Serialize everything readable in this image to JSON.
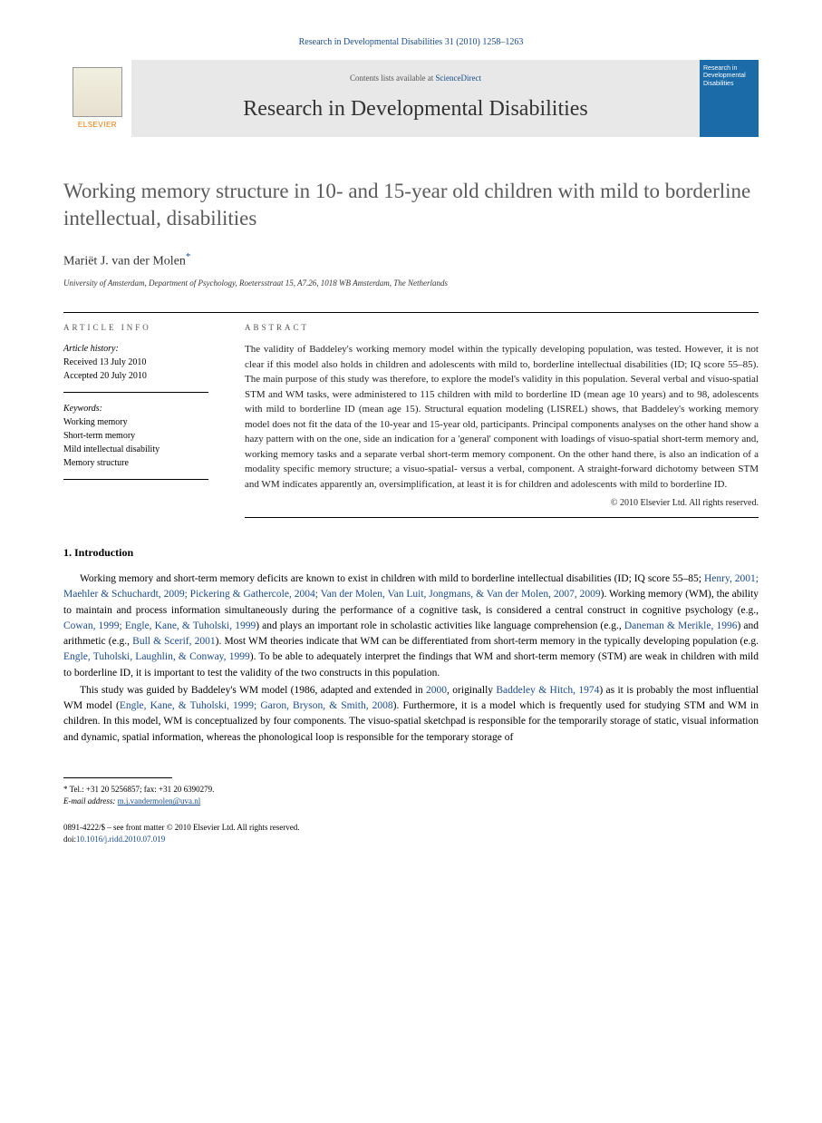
{
  "header": {
    "citation": "Research in Developmental Disabilities 31 (2010) 1258–1263",
    "contents_prefix": "Contents lists available at ",
    "contents_link": "ScienceDirect",
    "journal_title": "Research in Developmental Disabilities",
    "elsevier_label": "ELSEVIER",
    "cover_text": "Research in Developmental Disabilities"
  },
  "article": {
    "title": "Working memory structure in 10- and 15-year old children with mild to borderline intellectual, disabilities",
    "author": "Mariët J. van der Molen",
    "asterisk": "*",
    "affiliation": "University of Amsterdam, Department of Psychology, Roetersstraat 15, A7.26, 1018 WB Amsterdam, The Netherlands"
  },
  "info": {
    "label_info": "ARTICLE INFO",
    "label_abstract": "ABSTRACT",
    "history_label": "Article history:",
    "received": "Received 13 July 2010",
    "accepted": "Accepted 20 July 2010",
    "keywords_label": "Keywords:",
    "keywords": [
      "Working memory",
      "Short-term memory",
      "Mild intellectual disability",
      "Memory structure"
    ]
  },
  "abstract": {
    "text": "The validity of Baddeley's working memory model within the typically developing population, was tested. However, it is not clear if this model also holds in children and adolescents with mild to, borderline intellectual disabilities (ID; IQ score 55–85). The main purpose of this study was therefore, to explore the model's validity in this population. Several verbal and visuo-spatial STM and WM tasks, were administered to 115 children with mild to borderline ID (mean age 10 years) and to 98, adolescents with mild to borderline ID (mean age 15). Structural equation modeling (LISREL) shows, that Baddeley's working memory model does not fit the data of the 10-year and 15-year old, participants. Principal components analyses on the other hand show a hazy pattern with on the one, side an indication for a 'general' component with loadings of visuo-spatial short-term memory and, working memory tasks and a separate verbal short-term memory component. On the other hand there, is also an indication of a modality specific memory structure; a visuo-spatial- versus a verbal, component. A straight-forward dichotomy between STM and WM indicates apparently an, oversimplification, at least it is for children and adolescents with mild to borderline ID.",
    "copyright": "© 2010 Elsevier Ltd. All rights reserved."
  },
  "body": {
    "section1_heading": "1. Introduction",
    "para1_pre": "Working memory and short-term memory deficits are known to exist in children with mild to borderline intellectual disabilities (ID; IQ score 55–85; ",
    "para1_ref1": "Henry, 2001; Maehler & Schuchardt, 2009; Pickering & Gathercole, 2004; Van der Molen, Van Luit, Jongmans, & Van der Molen, 2007, 2009",
    "para1_mid1": "). Working memory (WM), the ability to maintain and process information simultaneously during the performance of a cognitive task, is considered a central construct in cognitive psychology (e.g., ",
    "para1_ref2": "Cowan, 1999; Engle, Kane, & Tuholski, 1999",
    "para1_mid2": ") and plays an important role in scholastic activities like language comprehension (e.g., ",
    "para1_ref3": "Daneman & Merikle, 1996",
    "para1_mid3": ") and arithmetic (e.g., ",
    "para1_ref4": "Bull & Scerif, 2001",
    "para1_mid4": "). Most WM theories indicate that WM can be differentiated from short-term memory in the typically developing population (e.g. ",
    "para1_ref5": "Engle, Tuholski, Laughlin, & Conway, 1999",
    "para1_end": "). To be able to adequately interpret the findings that WM and short-term memory (STM) are weak in children with mild to borderline ID, it is important to test the validity of the two constructs in this population.",
    "para2_pre": "This study was guided by Baddeley's WM model (1986, adapted and extended in ",
    "para2_ref1": "2000",
    "para2_mid1": ", originally ",
    "para2_ref2": "Baddeley & Hitch, 1974",
    "para2_mid2": ") as it is probably the most influential WM model (",
    "para2_ref3": "Engle, Kane, & Tuholski, 1999; Garon, Bryson, & Smith, 2008",
    "para2_end": "). Furthermore, it is a model which is frequently used for studying STM and WM in children. In this model, WM is conceptualized by four components. The visuo-spatial sketchpad is responsible for the temporarily storage of static, visual information and dynamic, spatial information, whereas the phonological loop is responsible for the temporary storage of"
  },
  "footnote": {
    "tel_label": "* Tel.: +31 20 5256857; fax: +31 20 6390279.",
    "email_label": "E-mail address:",
    "email": "m.j.vandermolen@uva.nl"
  },
  "bottom": {
    "issn": "0891-4222/$ – see front matter © 2010 Elsevier Ltd. All rights reserved.",
    "doi_label": "doi:",
    "doi": "10.1016/j.ridd.2010.07.019"
  }
}
